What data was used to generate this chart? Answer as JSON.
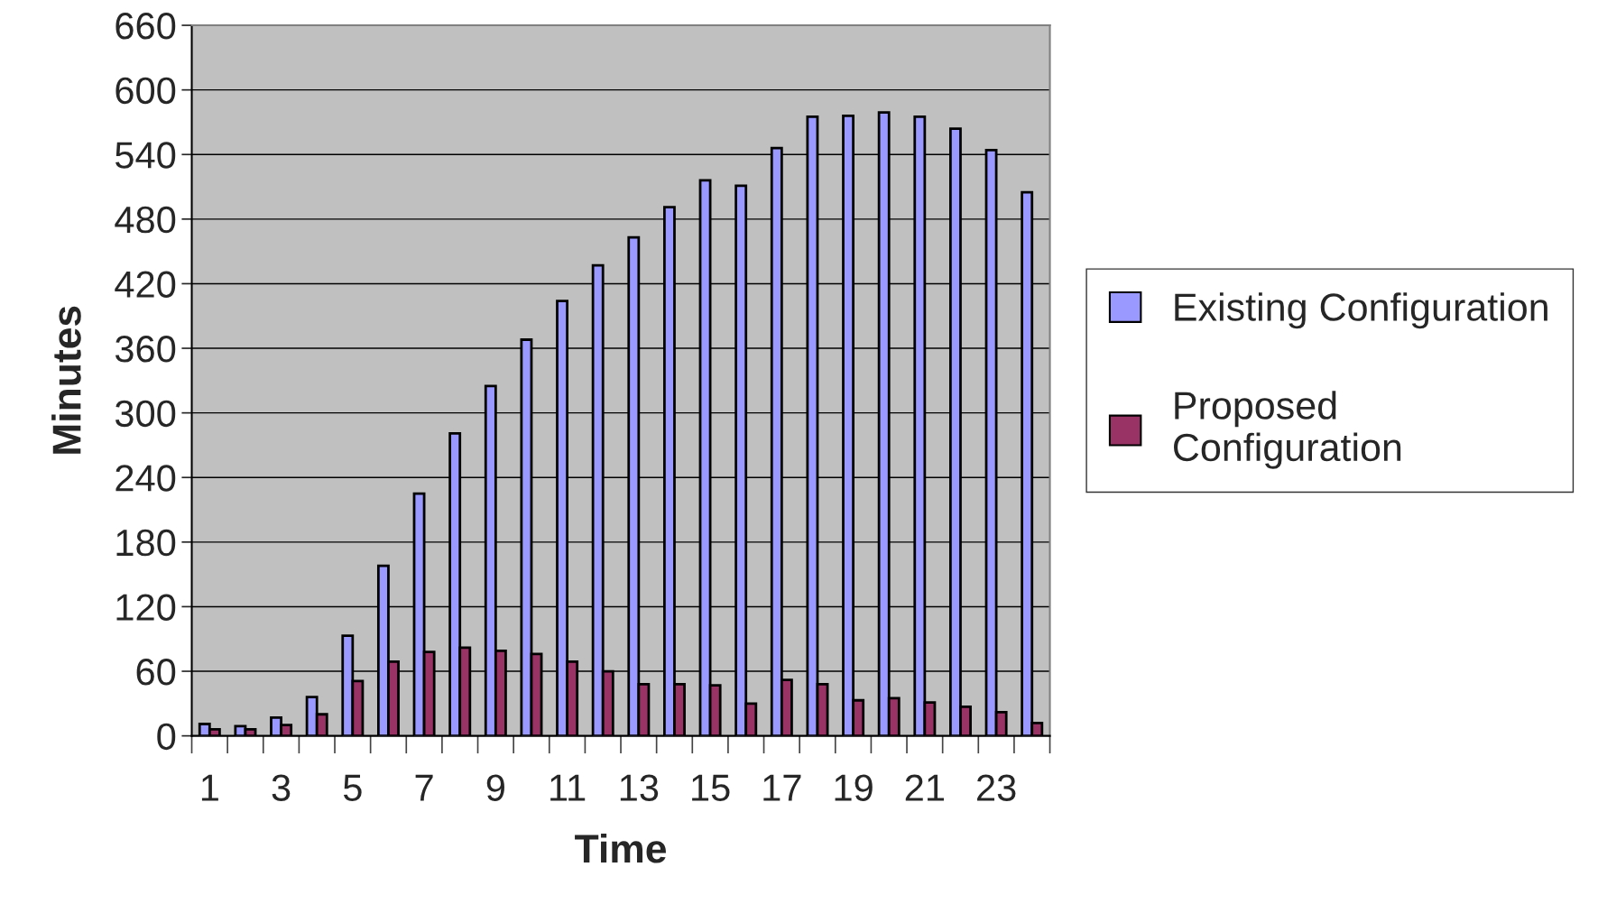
{
  "chart_data": {
    "type": "bar",
    "xlabel": "Time",
    "ylabel": "Minutes",
    "categories": [
      "1",
      null,
      "3",
      null,
      "5",
      null,
      "7",
      null,
      "9",
      null,
      "11",
      null,
      "13",
      null,
      "15",
      null,
      "17",
      null,
      "19",
      null,
      "21",
      null,
      "23",
      null
    ],
    "series": [
      {
        "name": "Existing Configuration",
        "color": "#9999ff",
        "values": [
          11,
          9,
          17,
          36,
          93,
          158,
          225,
          281,
          325,
          368,
          404,
          437,
          463,
          491,
          516,
          511,
          546,
          575,
          576,
          579,
          575,
          564,
          544,
          505
        ]
      },
      {
        "name": "Proposed\nConfiguration",
        "color": "#993366",
        "values": [
          6,
          6,
          10,
          20,
          51,
          69,
          78,
          82,
          79,
          76,
          69,
          60,
          48,
          48,
          47,
          30,
          52,
          48,
          33,
          35,
          31,
          27,
          22,
          12
        ]
      }
    ],
    "ylim": [
      0,
      660
    ],
    "yticks": [
      0,
      60,
      120,
      180,
      240,
      300,
      360,
      420,
      480,
      540,
      600,
      660
    ],
    "grid": "y",
    "legend": "right"
  }
}
